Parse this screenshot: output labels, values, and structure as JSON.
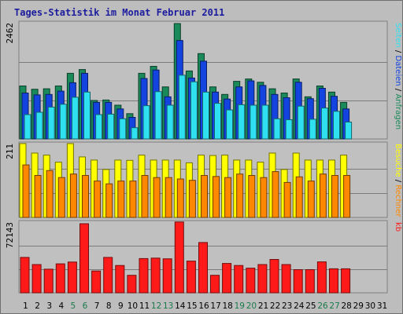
{
  "title": "Tages-Statistik im Monat Februar 2011",
  "colors": {
    "frame": "#bdbdbd",
    "frame_border": "#6f6f6f",
    "plot_bg": "#c0c0c0",
    "grid": "#7b7b7b",
    "title": "#1c1c9e",
    "anfragen": "#1a8a5a",
    "dateien": "#1444e0",
    "seiten": "#2ee0f0",
    "besuche": "#ffff00",
    "rechner": "#ff8800",
    "kb": "#ff1a1a",
    "day_normal": "#000000",
    "day_weekend": "#1a7a4a"
  },
  "chart_data": [
    {
      "type": "bar",
      "panel": "hits",
      "title": "Tages-Statistik im Monat Februar 2011",
      "ymax_label": "2462",
      "ylim": [
        0,
        2462
      ],
      "grid_values": [
        820,
        1640
      ],
      "legend": [
        {
          "label": "Anfragen",
          "color": "#1a8a5a"
        },
        {
          "label": "Dateien",
          "color": "#1444e0"
        },
        {
          "label": "Seiten",
          "color": "#2ee0f0"
        }
      ],
      "series": [
        {
          "name": "Anfragen",
          "values": [
            1130,
            1060,
            1070,
            1130,
            1400,
            1480,
            820,
            830,
            720,
            540,
            1400,
            1550,
            1110,
            2462,
            1450,
            1820,
            1110,
            950,
            1230,
            1280,
            1210,
            1070,
            980,
            1280,
            900,
            1130,
            1000,
            780,
            0,
            0,
            0
          ]
        },
        {
          "name": "Dateien",
          "values": [
            980,
            940,
            950,
            1020,
            1200,
            1400,
            780,
            780,
            640,
            460,
            1290,
            1470,
            900,
            2100,
            1300,
            1660,
            1000,
            850,
            1110,
            1240,
            1140,
            950,
            880,
            1210,
            860,
            1080,
            910,
            640,
            0,
            0,
            0
          ]
        },
        {
          "name": "Seiten",
          "values": [
            520,
            570,
            680,
            740,
            890,
            1000,
            520,
            530,
            430,
            240,
            710,
            1010,
            720,
            1360,
            1220,
            1000,
            760,
            620,
            730,
            720,
            720,
            430,
            410,
            700,
            420,
            660,
            590,
            360,
            0,
            0,
            0
          ]
        }
      ]
    },
    {
      "type": "bar",
      "panel": "visits",
      "ymax_label": "211",
      "ylim": [
        0,
        211
      ],
      "grid_values": [
        70,
        140
      ],
      "legend": [
        {
          "label": "Rechner",
          "color": "#ff8800"
        },
        {
          "label": "Besuche",
          "color": "#ffff00"
        }
      ],
      "series": [
        {
          "name": "Besuche",
          "values": [
            211,
            184,
            178,
            158,
            211,
            173,
            164,
            137,
            164,
            163,
            178,
            164,
            164,
            164,
            156,
            178,
            177,
            178,
            164,
            164,
            158,
            184,
            137,
            184,
            164,
            164,
            164,
            178,
            0,
            0,
            0
          ]
        },
        {
          "name": "Rechner",
          "values": [
            150,
            120,
            134,
            114,
            124,
            120,
            104,
            96,
            104,
            104,
            120,
            114,
            114,
            110,
            106,
            120,
            117,
            114,
            124,
            120,
            114,
            131,
            100,
            116,
            104,
            124,
            120,
            120,
            0,
            0,
            0
          ]
        }
      ]
    },
    {
      "type": "bar",
      "panel": "kb",
      "ymax_label": "72143",
      "ylim": [
        0,
        72143
      ],
      "grid_values": [
        24048,
        48096
      ],
      "legend": [
        {
          "label": "kb",
          "color": "#ff1a1a"
        }
      ],
      "series": [
        {
          "name": "kb",
          "values": [
            36080,
            28800,
            24050,
            29500,
            31370,
            70420,
            22220,
            36080,
            27880,
            17840,
            34850,
            35360,
            34650,
            72143,
            32360,
            51300,
            17840,
            29960,
            27880,
            25090,
            28800,
            34020,
            28800,
            23590,
            23590,
            31500,
            24510,
            24510,
            0,
            0,
            0
          ]
        }
      ]
    }
  ],
  "days": [
    "1",
    "2",
    "3",
    "4",
    "5",
    "6",
    "7",
    "8",
    "9",
    "10",
    "11",
    "12",
    "13",
    "14",
    "15",
    "16",
    "17",
    "18",
    "19",
    "20",
    "21",
    "22",
    "23",
    "24",
    "25",
    "26",
    "27",
    "28",
    "29",
    "30",
    "31"
  ],
  "weekend_days": [
    5,
    6,
    12,
    13,
    19,
    20,
    26,
    27
  ]
}
